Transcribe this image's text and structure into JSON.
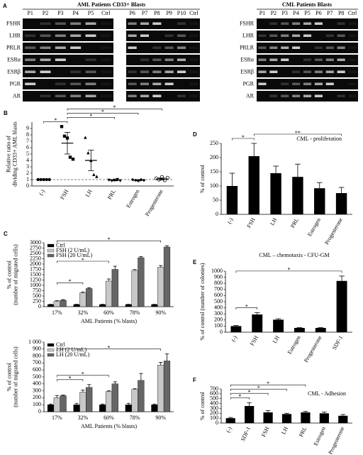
{
  "panel_a": {
    "panel": "A",
    "title_left": "AML Patients CD33+ Blasts",
    "title_right": "CML Patients Blasts",
    "lanes_left": [
      "P1",
      "P2",
      "P3",
      "P4",
      "P5",
      "Ctrl",
      "P6",
      "P7",
      "P8",
      "P9",
      "P10",
      "Ctrl"
    ],
    "lanes_right": [
      "P1",
      "P2",
      "P3",
      "P4",
      "P5",
      "P6",
      "P7",
      "P8",
      "Ctrl"
    ],
    "genes": [
      "FSHR",
      "LHR",
      "PRLR",
      "ESRα",
      "ESRβ",
      "PGR",
      "AR"
    ]
  },
  "chart_data": [
    {
      "type": "dot",
      "panel": "B",
      "ylabel": [
        "Relative ratio of",
        "dividing CD33+ AML blasts"
      ],
      "categories": [
        "(-)",
        "FSH",
        "LH",
        "PRL",
        "Estrogen",
        "Progesterone"
      ],
      "markers": [
        "circle",
        "square",
        "triangle",
        "triangle-down",
        "diamond",
        "open-circle"
      ],
      "points": [
        [
          1,
          1,
          1,
          1,
          1
        ],
        [
          9.3,
          7.8,
          7.5,
          4.5,
          4.2
        ],
        [
          7.6,
          5.2,
          4.0,
          1.8,
          1.5
        ],
        [
          0.9,
          0.8,
          0.9,
          1,
          0.8
        ],
        [
          1,
          0.9,
          0.8,
          1,
          0.9
        ],
        [
          1.2,
          1,
          1.4,
          0.9,
          1.3
        ]
      ],
      "values": [
        1,
        6.7,
        4,
        0.9,
        0.9,
        1.1
      ],
      "errors": [
        0,
        1.7,
        1.6,
        0.1,
        0.1,
        0.15
      ],
      "reference_line": 1,
      "ylim": [
        0,
        10
      ],
      "yticks": [
        0,
        1,
        2,
        3,
        4,
        5,
        6,
        7,
        8,
        9
      ],
      "significance": [
        {
          "label": "*",
          "between": [
            "(-)",
            "FSH"
          ]
        },
        {
          "label": "*",
          "between": [
            "FSH",
            "PRL"
          ]
        },
        {
          "label": "*",
          "between": [
            "FSH",
            "Estrogen"
          ]
        },
        {
          "label": "*",
          "between": [
            "FSH",
            "Progesterone"
          ]
        }
      ]
    },
    {
      "type": "grouped_bar",
      "panel": "C",
      "ylabel": [
        "% of control",
        "(number of migrated cells)"
      ],
      "xlabel": "AML Patients (% blasts)",
      "categories": [
        "17%",
        "32%",
        "60%",
        "78%",
        "90%"
      ],
      "legend": "upper left",
      "series": [
        {
          "name": "Ctrl",
          "color": "#000000",
          "values": [
            100,
            100,
            100,
            100,
            100
          ],
          "errors": [
            10,
            10,
            10,
            10,
            10
          ]
        },
        {
          "name": "FSH (2 U/mL)",
          "color": "#c8c8c8",
          "values": [
            250,
            650,
            1200,
            1700,
            1850
          ],
          "errors": [
            30,
            40,
            100,
            40,
            80
          ]
        },
        {
          "name": "FSH (20 U/mL)",
          "color": "#666666",
          "values": [
            300,
            850,
            1750,
            2300,
            2800
          ],
          "errors": [
            30,
            40,
            150,
            50,
            60
          ]
        }
      ],
      "ylim": [
        0,
        3000
      ],
      "yticks": [
        0,
        250,
        500,
        750,
        1000,
        1250,
        1500,
        1750,
        2000,
        2250,
        2500,
        2750,
        3000
      ],
      "significance": [
        {
          "label": "*",
          "between": [
            "17%",
            "32%"
          ]
        },
        {
          "label": "*",
          "between": [
            "17%",
            "60%"
          ]
        },
        {
          "label": "*",
          "between": [
            "17%",
            "90%"
          ]
        }
      ]
    },
    {
      "type": "grouped_bar",
      "ylabel": [
        "% of control",
        "(number of migrated cells)"
      ],
      "xlabel": "AML Patients (% blasts)",
      "categories": [
        "17%",
        "32%",
        "60%",
        "78%",
        "90%"
      ],
      "legend": "upper left",
      "series": [
        {
          "name": "Ctrl",
          "color": "#000000",
          "values": [
            100,
            100,
            100,
            100,
            100
          ],
          "errors": [
            10,
            20,
            10,
            20,
            10
          ]
        },
        {
          "name": "LH (2 U/mL)",
          "color": "#c8c8c8",
          "values": [
            200,
            280,
            290,
            320,
            670
          ],
          "errors": [
            30,
            30,
            10,
            10,
            40
          ]
        },
        {
          "name": "LH (20 U/mL)",
          "color": "#666666",
          "values": [
            230,
            350,
            400,
            450,
            730
          ],
          "errors": [
            10,
            40,
            30,
            100,
            100
          ]
        }
      ],
      "ylim": [
        0,
        1000
      ],
      "yticks": [
        0,
        100,
        200,
        300,
        400,
        500,
        600,
        700,
        800,
        900,
        {
          "value": 1000,
          "label": "1 000"
        }
      ],
      "significance": [
        {
          "label": "*",
          "between": [
            "17%",
            "32%"
          ]
        },
        {
          "label": "*",
          "between": [
            "17%",
            "60%"
          ]
        },
        {
          "label": "*",
          "between": [
            "17%",
            "90%"
          ]
        }
      ]
    },
    {
      "type": "bar",
      "panel": "D",
      "title": "CML - proliferation",
      "ylabel": "% of control",
      "color": "#000000",
      "categories": [
        "(-)",
        "FSH",
        "LH",
        "PRL",
        "Estrogen",
        "Progesterone"
      ],
      "values": [
        100,
        205,
        145,
        132,
        92,
        75
      ],
      "errors": [
        45,
        45,
        25,
        45,
        20,
        20
      ],
      "ylim": [
        0,
        250
      ],
      "yticks": [
        0,
        50,
        100,
        150,
        200,
        250
      ],
      "significance": [
        {
          "label": "*",
          "between": [
            "(-)",
            "FSH"
          ]
        },
        {
          "label": "**",
          "between": [
            "FSH",
            "Progesterone"
          ]
        }
      ]
    },
    {
      "type": "bar",
      "panel": "E",
      "title": "CML – chemotaxis - CFU-GM",
      "ylabel": "% of control (number of colonies)",
      "color": "#000000",
      "categories": [
        "(-)",
        "FSH",
        "LH",
        "Estrogen",
        "Progesterone",
        "SDF-1"
      ],
      "values": [
        100,
        290,
        205,
        70,
        70,
        840
      ],
      "errors": [
        10,
        30,
        15,
        5,
        5,
        80
      ],
      "ylim": [
        0,
        1000
      ],
      "yticks": [
        0,
        100,
        200,
        300,
        400,
        500,
        600,
        700,
        800,
        900,
        1000
      ],
      "significance": [
        {
          "label": "*",
          "between": [
            "(-)",
            "FSH"
          ]
        },
        {
          "label": "*",
          "between": [
            "(-)",
            "SDF-1"
          ]
        }
      ]
    },
    {
      "type": "bar",
      "panel": "F",
      "title": "CML - Adhesion",
      "ylabel": "% of control",
      "color": "#000000",
      "categories": [
        "(-)",
        "SDF-1",
        "FSH",
        "LH",
        "PRL",
        "Estrogen",
        "Progesterone"
      ],
      "values": [
        100,
        350,
        220,
        185,
        220,
        200,
        150
      ],
      "errors": [
        15,
        70,
        35,
        15,
        20,
        25,
        25
      ],
      "ylim": [
        0,
        700
      ],
      "yticks": [
        0,
        100,
        200,
        300,
        400,
        500,
        600,
        700
      ],
      "significance": [
        {
          "label": "*",
          "between": [
            "(-)",
            "SDF-1"
          ]
        },
        {
          "label": "*",
          "between": [
            "(-)",
            "FSH"
          ]
        },
        {
          "label": "*",
          "between": [
            "(-)",
            "LH"
          ]
        },
        {
          "label": "*",
          "between": [
            "(-)",
            "PRL"
          ]
        }
      ]
    }
  ]
}
